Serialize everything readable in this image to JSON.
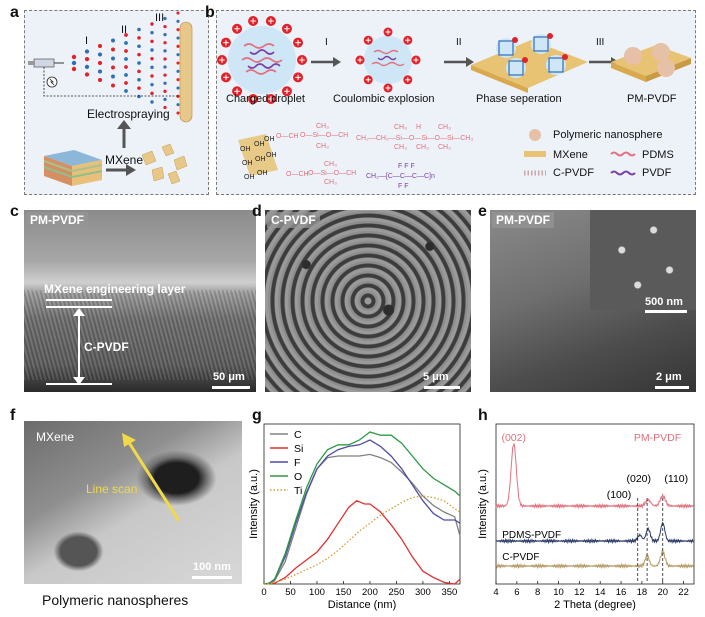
{
  "panels": {
    "a": {
      "letter": "a",
      "stages": [
        "I",
        "II",
        "III"
      ],
      "caption": "Electrospraying",
      "mxene_label": "MXene"
    },
    "b": {
      "letter": "b",
      "steps": [
        "Charged droplet",
        "Coulombic explosion",
        "Phase seperation",
        "PM-PVDF"
      ],
      "arrows": [
        "I",
        "II",
        "III"
      ],
      "legend": {
        "nanosphere": "Polymeric nanosphere",
        "mxene": "MXene",
        "pdms": "PDMS",
        "cpvdf": "C-PVDF",
        "pvdf": "PVDF"
      },
      "colors": {
        "mxene": "#e8c374",
        "pdms": "#e2707d",
        "cpvdf": "#c9a7a7",
        "pvdf": "#7b3fa5",
        "droplet": "#cfe6f6",
        "charge": "#e0232b"
      }
    },
    "c": {
      "letter": "c",
      "tag": "PM-PVDF",
      "layer_label": "MXene engineering layer",
      "bulk_label": "C-PVDF",
      "scale": "50 μm"
    },
    "d": {
      "letter": "d",
      "tag": "C-PVDF",
      "scale": "5 μm"
    },
    "e": {
      "letter": "e",
      "tag": "PM-PVDF",
      "inset_scale": "500 nm",
      "scale": "2 μm"
    },
    "f": {
      "letter": "f",
      "tag": "MXene",
      "line_label": "Line scan",
      "scale": "100 nm",
      "caption": "Polymeric nanospheres"
    },
    "g": {
      "letter": "g"
    },
    "h": {
      "letter": "h"
    }
  },
  "chart_data": [
    {
      "panel": "g",
      "type": "line",
      "xlabel": "Distance (nm)",
      "ylabel": "Intensity (a.u.)",
      "xlim": [
        0,
        370
      ],
      "xticks": [
        0,
        50,
        100,
        150,
        200,
        250,
        300,
        350
      ],
      "legend_position": "top-left",
      "series": [
        {
          "name": "C",
          "color": "#808080",
          "style": "solid",
          "x": [
            0,
            10,
            20,
            40,
            60,
            80,
            100,
            120,
            140,
            160,
            180,
            200,
            220,
            240,
            260,
            280,
            300,
            320,
            340,
            360,
            370
          ],
          "y": [
            0,
            0.3,
            2,
            14,
            35,
            56,
            72,
            79,
            80,
            80,
            80,
            81,
            79,
            76,
            70,
            63,
            55,
            49,
            45,
            42,
            30
          ]
        },
        {
          "name": "Si",
          "color": "#e0302f",
          "style": "solid",
          "x": [
            0,
            10,
            20,
            40,
            60,
            80,
            100,
            120,
            140,
            160,
            175,
            190,
            200,
            220,
            240,
            260,
            280,
            300,
            320,
            340,
            360,
            370
          ],
          "y": [
            0,
            0.2,
            0.5,
            4,
            10,
            15,
            20,
            28,
            38,
            48,
            52,
            50,
            50,
            45,
            37,
            28,
            17,
            8,
            4,
            1,
            0,
            3
          ]
        },
        {
          "name": "F",
          "color": "#4e4ca6",
          "style": "solid",
          "x": [
            0,
            10,
            20,
            40,
            60,
            80,
            100,
            120,
            140,
            160,
            180,
            200,
            220,
            240,
            260,
            280,
            300,
            320,
            340,
            360,
            370
          ],
          "y": [
            0,
            0.5,
            3,
            17,
            38,
            57,
            72,
            80,
            84,
            86,
            87,
            90,
            86,
            80,
            72,
            62,
            52,
            44,
            40,
            40,
            38
          ]
        },
        {
          "name": "O",
          "color": "#2e9a45",
          "style": "solid",
          "x": [
            0,
            10,
            20,
            40,
            60,
            80,
            100,
            120,
            140,
            160,
            180,
            200,
            220,
            240,
            260,
            280,
            300,
            320,
            340,
            360,
            370
          ],
          "y": [
            0,
            0.5,
            3,
            19,
            40,
            60,
            75,
            84,
            87,
            87,
            90,
            95,
            93,
            93,
            88,
            80,
            72,
            66,
            62,
            58,
            55
          ]
        },
        {
          "name": "Ti",
          "color": "#d99a2b",
          "style": "dotted",
          "x": [
            0,
            10,
            20,
            40,
            60,
            80,
            100,
            120,
            140,
            160,
            180,
            200,
            220,
            240,
            260,
            280,
            300,
            320,
            340,
            360,
            370
          ],
          "y": [
            0,
            0,
            1,
            3,
            6,
            9,
            12,
            16,
            21,
            27,
            33,
            38,
            43,
            47,
            51,
            54,
            55,
            54,
            52,
            47,
            45
          ]
        }
      ]
    },
    {
      "panel": "h",
      "type": "line",
      "xlabel": "2 Theta (degree)",
      "ylabel": "Intensity (a.u.)",
      "xlim": [
        4,
        23
      ],
      "xticks": [
        4,
        6,
        8,
        10,
        12,
        14,
        16,
        18,
        20,
        22
      ],
      "annotations": [
        "(002)",
        "(100)",
        "(020)",
        "(110)"
      ],
      "series": [
        {
          "name": "PM-PVDF",
          "color": "#e2707d"
        },
        {
          "name": "PDMS-PVDF",
          "color": "#2a3a66"
        },
        {
          "name": "C-PVDF",
          "color": "#b59a63"
        }
      ]
    }
  ]
}
